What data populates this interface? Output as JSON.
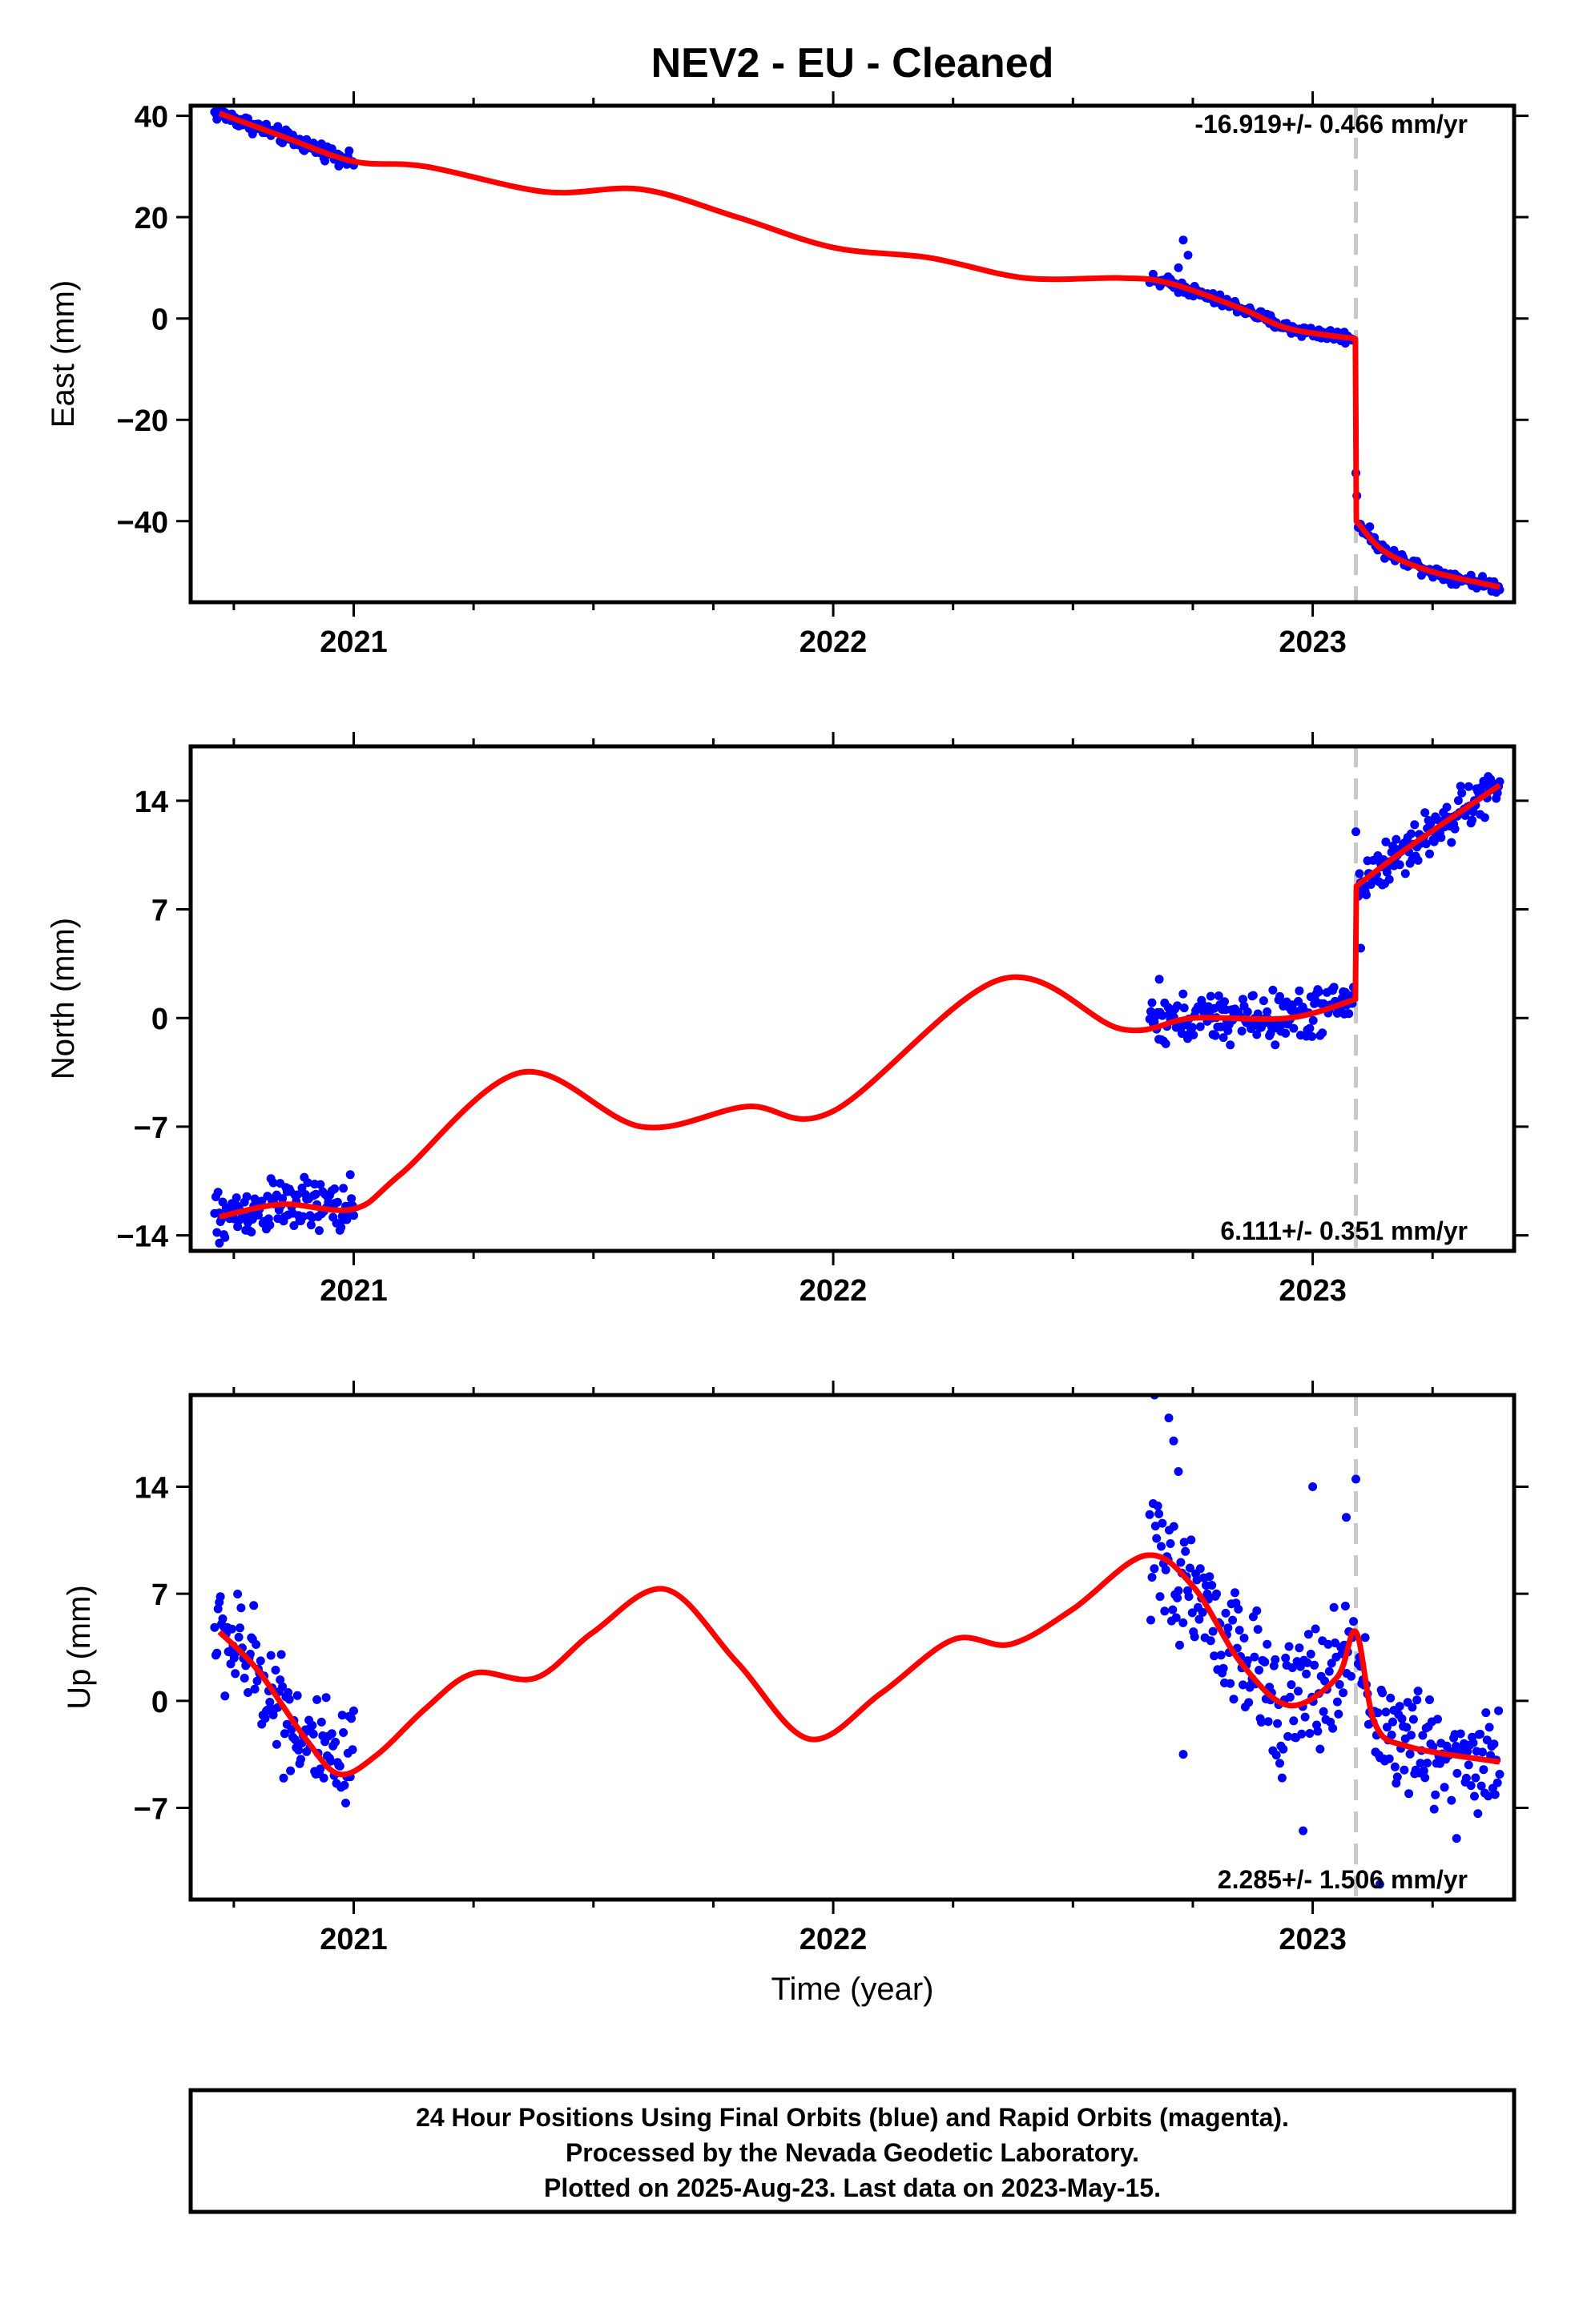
{
  "title": "NEV2  - EU - Cleaned",
  "colors": {
    "final_orbits": "#0000ff",
    "model": "#ff0000",
    "step": "#c8c8c8",
    "frame": "#000000"
  },
  "xlabel": "Time (year)",
  "footer": {
    "line1": "24 Hour Positions Using Final Orbits (blue) and Rapid Orbits (magenta).",
    "line2": "Processed by the Nevada Geodetic Laboratory.",
    "line3": "Plotted on 2025-Aug-23. Last data on 2023-May-15."
  },
  "chart_data": [
    {
      "type": "scatter",
      "component": "east",
      "ylabel": "East (mm)",
      "xlim": [
        2020.66,
        2023.42
      ],
      "ylim": [
        -56,
        42
      ],
      "xticks": [
        2021,
        2022,
        2023
      ],
      "xtick_labels": [
        "2021",
        "2022",
        "2023"
      ],
      "yticks": [
        -40,
        -20,
        0,
        20,
        40
      ],
      "ytick_labels": [
        "−40",
        "−20",
        "0",
        "20",
        "40"
      ],
      "rate_label": "-16.919+/- 0.466 mm/yr",
      "rate_position": "top-right",
      "step_epoch": 2023.09,
      "segments": [
        {
          "x_start": 2020.71,
          "x_end": 2021.0,
          "spread": 1.2
        },
        {
          "x_start": 2022.66,
          "x_end": 2023.085,
          "spread": 1.0
        },
        {
          "x_start": 2023.095,
          "x_end": 2023.39,
          "spread": 1.0
        }
      ],
      "outliers": [
        [
          2022.73,
          15.5
        ],
        [
          2022.74,
          12.5
        ],
        [
          2022.72,
          10.0
        ],
        [
          2023.09,
          -30.5
        ],
        [
          2023.092,
          -35.0
        ]
      ],
      "model": [
        [
          2020.72,
          40.5
        ],
        [
          2020.85,
          36.0
        ],
        [
          2021.0,
          31.0
        ],
        [
          2021.15,
          30.0
        ],
        [
          2021.4,
          25.0
        ],
        [
          2021.6,
          25.5
        ],
        [
          2021.8,
          20.0
        ],
        [
          2022.0,
          14.0
        ],
        [
          2022.2,
          12.0
        ],
        [
          2022.4,
          8.0
        ],
        [
          2022.6,
          8.0
        ],
        [
          2022.7,
          7.0
        ],
        [
          2022.85,
          2.0
        ],
        [
          2022.95,
          -2.0
        ],
        [
          2023.089,
          -4.0
        ],
        [
          2023.091,
          -40.0
        ],
        [
          2023.15,
          -46.0
        ],
        [
          2023.25,
          -50.0
        ],
        [
          2023.39,
          -53.0
        ]
      ]
    },
    {
      "type": "scatter",
      "component": "north",
      "ylabel": "North (mm)",
      "xlim": [
        2020.66,
        2023.42
      ],
      "ylim": [
        -15.0,
        17.5
      ],
      "xticks": [
        2021,
        2022,
        2023
      ],
      "xtick_labels": [
        "2021",
        "2022",
        "2023"
      ],
      "yticks": [
        -14,
        -7,
        0,
        7,
        14
      ],
      "ytick_labels": [
        "−14",
        "−7",
        "0",
        "7",
        "14"
      ],
      "rate_label": "6.111+/- 0.351 mm/yr",
      "rate_position": "bottom-right",
      "step_epoch": 2023.09,
      "segments": [
        {
          "x_start": 2020.71,
          "x_end": 2021.0,
          "spread": 1.4
        },
        {
          "x_start": 2022.66,
          "x_end": 2023.085,
          "spread": 1.3
        },
        {
          "x_start": 2023.095,
          "x_end": 2023.39,
          "spread": 1.2
        }
      ],
      "outliers": [
        [
          2020.72,
          -14.5
        ],
        [
          2020.96,
          -11.0
        ],
        [
          2022.68,
          2.5
        ],
        [
          2023.09,
          12.0
        ],
        [
          2023.1,
          4.5
        ]
      ],
      "model": [
        [
          2020.72,
          -12.8
        ],
        [
          2020.85,
          -12.0
        ],
        [
          2021.0,
          -12.3
        ],
        [
          2021.1,
          -10.0
        ],
        [
          2021.35,
          -3.5
        ],
        [
          2021.6,
          -7.0
        ],
        [
          2021.82,
          -5.7
        ],
        [
          2022.0,
          -6.0
        ],
        [
          2022.35,
          2.5
        ],
        [
          2022.6,
          -0.7
        ],
        [
          2022.75,
          0.0
        ],
        [
          2022.95,
          0.0
        ],
        [
          2023.089,
          1.2
        ],
        [
          2023.091,
          8.5
        ],
        [
          2023.2,
          11.0
        ],
        [
          2023.39,
          15.0
        ]
      ]
    },
    {
      "type": "scatter",
      "component": "up",
      "ylabel": "Up (mm)",
      "xlim": [
        2020.66,
        2023.42
      ],
      "ylim": [
        -13.0,
        20.0
      ],
      "xticks": [
        2021,
        2022,
        2023
      ],
      "xtick_labels": [
        "2021",
        "2022",
        "2023"
      ],
      "yticks": [
        -7,
        0,
        7,
        14
      ],
      "ytick_labels": [
        "−7",
        "0",
        "7",
        "14"
      ],
      "rate_label": "2.285+/- 1.506 mm/yr",
      "rate_position": "bottom-right",
      "step_epoch": 2023.09,
      "segments": [
        {
          "x_start": 2020.71,
          "x_end": 2021.0,
          "spread": 3.0
        },
        {
          "x_start": 2022.66,
          "x_end": 2023.085,
          "spread": 3.5
        },
        {
          "x_start": 2023.095,
          "x_end": 2023.39,
          "spread": 3.0
        }
      ],
      "outliers": [
        [
          2022.67,
          20.0
        ],
        [
          2022.7,
          18.5
        ],
        [
          2022.71,
          17.0
        ],
        [
          2022.72,
          15.0
        ],
        [
          2022.73,
          -3.5
        ],
        [
          2023.0,
          14.0
        ],
        [
          2023.09,
          14.5
        ],
        [
          2023.07,
          12.0
        ],
        [
          2023.14,
          -12.0
        ],
        [
          2022.98,
          -8.5
        ],
        [
          2023.3,
          -9.0
        ]
      ],
      "model": [
        [
          2020.72,
          4.5
        ],
        [
          2020.8,
          2.0
        ],
        [
          2020.9,
          -2.5
        ],
        [
          2020.97,
          -4.8
        ],
        [
          2021.05,
          -3.5
        ],
        [
          2021.15,
          -0.5
        ],
        [
          2021.25,
          1.8
        ],
        [
          2021.38,
          1.5
        ],
        [
          2021.5,
          4.5
        ],
        [
          2021.65,
          7.3
        ],
        [
          2021.8,
          2.5
        ],
        [
          2021.95,
          -2.5
        ],
        [
          2022.1,
          0.5
        ],
        [
          2022.25,
          4.0
        ],
        [
          2022.37,
          3.7
        ],
        [
          2022.5,
          6.0
        ],
        [
          2022.65,
          9.5
        ],
        [
          2022.75,
          7.5
        ],
        [
          2022.85,
          2.5
        ],
        [
          2022.95,
          -0.3
        ],
        [
          2023.05,
          1.5
        ],
        [
          2023.09,
          4.5
        ],
        [
          2023.13,
          -1.5
        ],
        [
          2023.2,
          -3.0
        ],
        [
          2023.39,
          -4.0
        ]
      ]
    }
  ]
}
